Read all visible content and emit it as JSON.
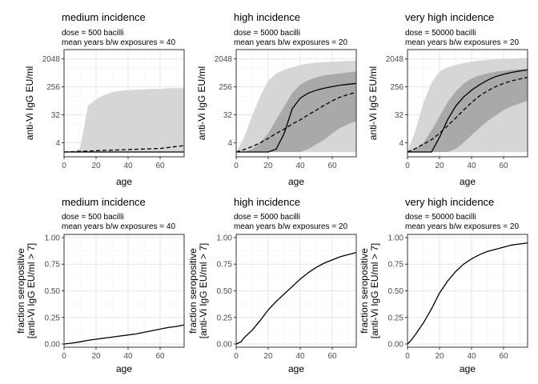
{
  "chart_data": [
    {
      "type": "area",
      "title": "medium incidence",
      "subtitle_lines": [
        "dose = 500 bacilli",
        "mean years b/w exposures = 40"
      ],
      "xlabel": "age",
      "ylabel": "anti-Vi IgG EU/ml",
      "xlim": [
        0,
        75
      ],
      "xticks": [
        0,
        20,
        40,
        60
      ],
      "y_scale": "log2",
      "ylim": [
        1.4,
        4096
      ],
      "yticks": [
        4,
        32,
        256,
        2048
      ],
      "ytick_labels": [
        "4",
        "32",
        "256",
        "2048"
      ],
      "grid": true,
      "x": [
        0,
        5,
        10,
        15,
        20,
        25,
        30,
        35,
        40,
        45,
        50,
        55,
        60,
        65,
        70,
        75
      ],
      "outer_band": {
        "lower": [
          2,
          2,
          2,
          2,
          2,
          2,
          2,
          2,
          2,
          2,
          2,
          2,
          2,
          2,
          2,
          2
        ],
        "upper": [
          2,
          2,
          2.6,
          64,
          100,
          140,
          170,
          190,
          200,
          210,
          210,
          220,
          220,
          230,
          230,
          230
        ]
      },
      "inner_band": {
        "lower": [
          2,
          2,
          2,
          2,
          2,
          2,
          2,
          2,
          2,
          2,
          2,
          2,
          2,
          2,
          2,
          2
        ],
        "upper": [
          2,
          2,
          2,
          2,
          2,
          2,
          2,
          2,
          2,
          2,
          2,
          2,
          2,
          2,
          2,
          2
        ]
      },
      "series": [
        {
          "style": "solid",
          "values": [
            2,
            2,
            2,
            2,
            2,
            2,
            2,
            2,
            2,
            2,
            2,
            2,
            2,
            2,
            2,
            2
          ]
        },
        {
          "style": "dashed",
          "values": [
            2,
            2.05,
            2.1,
            2.15,
            2.2,
            2.25,
            2.3,
            2.35,
            2.4,
            2.45,
            2.5,
            2.55,
            2.6,
            2.8,
            3.0,
            3.2
          ]
        }
      ]
    },
    {
      "type": "area",
      "title": "high incidence",
      "subtitle_lines": [
        "dose = 5000 bacilli",
        "mean years b/w exposures = 20"
      ],
      "xlabel": "age",
      "ylabel": "anti-Vi IgG EU/ml",
      "xlim": [
        0,
        75
      ],
      "xticks": [
        0,
        20,
        40,
        60
      ],
      "y_scale": "log2",
      "ylim": [
        1.4,
        4096
      ],
      "yticks": [
        4,
        32,
        256,
        2048
      ],
      "ytick_labels": [
        "4",
        "32",
        "256",
        "2048"
      ],
      "grid": true,
      "x": [
        0,
        5,
        10,
        15,
        20,
        25,
        30,
        35,
        40,
        45,
        50,
        55,
        60,
        65,
        70,
        75
      ],
      "outer_band": {
        "lower": [
          2,
          2,
          2,
          2,
          2,
          2,
          2,
          2,
          2,
          2,
          2,
          2,
          2,
          2,
          2,
          2
        ],
        "upper": [
          2,
          6,
          30,
          128,
          400,
          700,
          900,
          1100,
          1300,
          1450,
          1550,
          1600,
          1650,
          1700,
          1750,
          1800
        ]
      },
      "inner_band": {
        "lower": [
          2,
          2,
          2,
          2,
          2,
          2,
          2,
          2,
          2,
          2.5,
          3.5,
          5,
          8,
          12,
          16,
          20
        ],
        "upper": [
          2,
          2,
          2.5,
          4,
          8,
          22,
          60,
          160,
          300,
          420,
          520,
          600,
          650,
          700,
          750,
          800
        ]
      },
      "series": [
        {
          "style": "solid",
          "values": [
            2,
            2,
            2,
            2,
            2,
            2.5,
            8,
            50,
            110,
            160,
            200,
            230,
            260,
            290,
            310,
            330
          ]
        },
        {
          "style": "dashed",
          "values": [
            2,
            2.4,
            3,
            4,
            5.5,
            8,
            11,
            16,
            22,
            32,
            45,
            65,
            90,
            120,
            145,
            170
          ]
        }
      ]
    },
    {
      "type": "area",
      "title": "very high incidence",
      "subtitle_lines": [
        "dose = 50000 bacilli",
        "mean years b/w exposures = 20"
      ],
      "xlabel": "age",
      "ylabel": "anti-Vi IgG EU/ml",
      "xlim": [
        0,
        75
      ],
      "xticks": [
        0,
        20,
        40,
        60
      ],
      "y_scale": "log2",
      "ylim": [
        1.4,
        4096
      ],
      "yticks": [
        4,
        32,
        256,
        2048
      ],
      "ytick_labels": [
        "4",
        "32",
        "256",
        "2048"
      ],
      "grid": true,
      "x": [
        0,
        5,
        10,
        15,
        20,
        25,
        30,
        35,
        40,
        45,
        50,
        55,
        60,
        65,
        70,
        75
      ],
      "outer_band": {
        "lower": [
          2,
          2,
          2,
          2,
          2,
          2,
          2,
          2,
          2,
          2,
          2,
          2,
          2,
          2,
          2,
          2
        ],
        "upper": [
          2,
          10,
          80,
          350,
          800,
          1100,
          1300,
          1500,
          1650,
          1800,
          1900,
          2000,
          2050,
          2100,
          2150,
          2200
        ]
      },
      "inner_band": {
        "lower": [
          2,
          2,
          2,
          2,
          2,
          2,
          2.5,
          4,
          7,
          12,
          20,
          30,
          45,
          60,
          75,
          90
        ],
        "upper": [
          2,
          2.5,
          4,
          10,
          28,
          80,
          180,
          320,
          480,
          600,
          700,
          780,
          850,
          900,
          950,
          1000
        ]
      },
      "series": [
        {
          "style": "solid",
          "values": [
            2,
            2,
            2,
            2,
            6,
            22,
            60,
            120,
            200,
            300,
            420,
            550,
            650,
            750,
            830,
            900
          ]
        },
        {
          "style": "dashed",
          "values": [
            2,
            2.6,
            3.6,
            5,
            8,
            14,
            25,
            45,
            80,
            130,
            190,
            260,
            330,
            400,
            460,
            520
          ]
        }
      ]
    },
    {
      "type": "line",
      "title": "medium incidence",
      "subtitle_lines": [
        "dose = 500 bacilli",
        "mean years b/w exposures = 40"
      ],
      "xlabel": "age",
      "ylabel_lines": [
        "fraction seropositive",
        "[anti-Vi IgG EU/ml > 7]"
      ],
      "xlim": [
        0,
        75
      ],
      "xticks": [
        0,
        20,
        40,
        60
      ],
      "ylim": [
        -0.03,
        1.03
      ],
      "yticks": [
        0,
        0.25,
        0.5,
        0.75,
        1
      ],
      "ytick_labels": [
        "0.00",
        "0.25",
        "0.50",
        "0.75",
        "1.00"
      ],
      "grid": true,
      "x": [
        0,
        5,
        10,
        15,
        20,
        25,
        30,
        35,
        40,
        45,
        50,
        55,
        60,
        65,
        70,
        75
      ],
      "values": [
        0,
        0.008,
        0.02,
        0.035,
        0.045,
        0.055,
        0.065,
        0.075,
        0.085,
        0.095,
        0.11,
        0.125,
        0.14,
        0.155,
        0.165,
        0.18
      ]
    },
    {
      "type": "line",
      "title": "high incidence",
      "subtitle_lines": [
        "dose = 5000 bacilli",
        "mean years b/w exposures = 20"
      ],
      "xlabel": "age",
      "ylabel_lines": [
        "fraction seropositive",
        "[anti-Vi IgG EU/ml > 7]"
      ],
      "xlim": [
        0,
        75
      ],
      "xticks": [
        0,
        20,
        40,
        60
      ],
      "ylim": [
        -0.03,
        1.03
      ],
      "yticks": [
        0,
        0.25,
        0.5,
        0.75,
        1
      ],
      "ytick_labels": [
        "0.00",
        "0.25",
        "0.50",
        "0.75",
        "1.00"
      ],
      "grid": true,
      "x": [
        0,
        3,
        5,
        10,
        15,
        20,
        25,
        30,
        35,
        40,
        45,
        50,
        55,
        60,
        65,
        70,
        75
      ],
      "values": [
        0,
        0.02,
        0.06,
        0.13,
        0.22,
        0.32,
        0.4,
        0.47,
        0.54,
        0.61,
        0.67,
        0.72,
        0.76,
        0.79,
        0.82,
        0.84,
        0.86
      ]
    },
    {
      "type": "line",
      "title": "very high incidence",
      "subtitle_lines": [
        "dose = 50000 bacilli",
        "mean years b/w exposures = 20"
      ],
      "xlabel": "age",
      "ylabel_lines": [
        "fraction seropositive",
        "[anti-Vi IgG EU/ml > 7]"
      ],
      "xlim": [
        0,
        75
      ],
      "xticks": [
        0,
        20,
        40,
        60
      ],
      "ylim": [
        -0.03,
        1.03
      ],
      "yticks": [
        0,
        0.25,
        0.5,
        0.75,
        1
      ],
      "ytick_labels": [
        "0.00",
        "0.25",
        "0.50",
        "0.75",
        "1.00"
      ],
      "grid": true,
      "x": [
        0,
        2,
        5,
        10,
        15,
        20,
        25,
        30,
        35,
        40,
        45,
        50,
        55,
        60,
        65,
        70,
        75
      ],
      "values": [
        0,
        0.03,
        0.09,
        0.2,
        0.33,
        0.48,
        0.59,
        0.68,
        0.75,
        0.8,
        0.84,
        0.87,
        0.89,
        0.91,
        0.93,
        0.94,
        0.95
      ]
    }
  ]
}
